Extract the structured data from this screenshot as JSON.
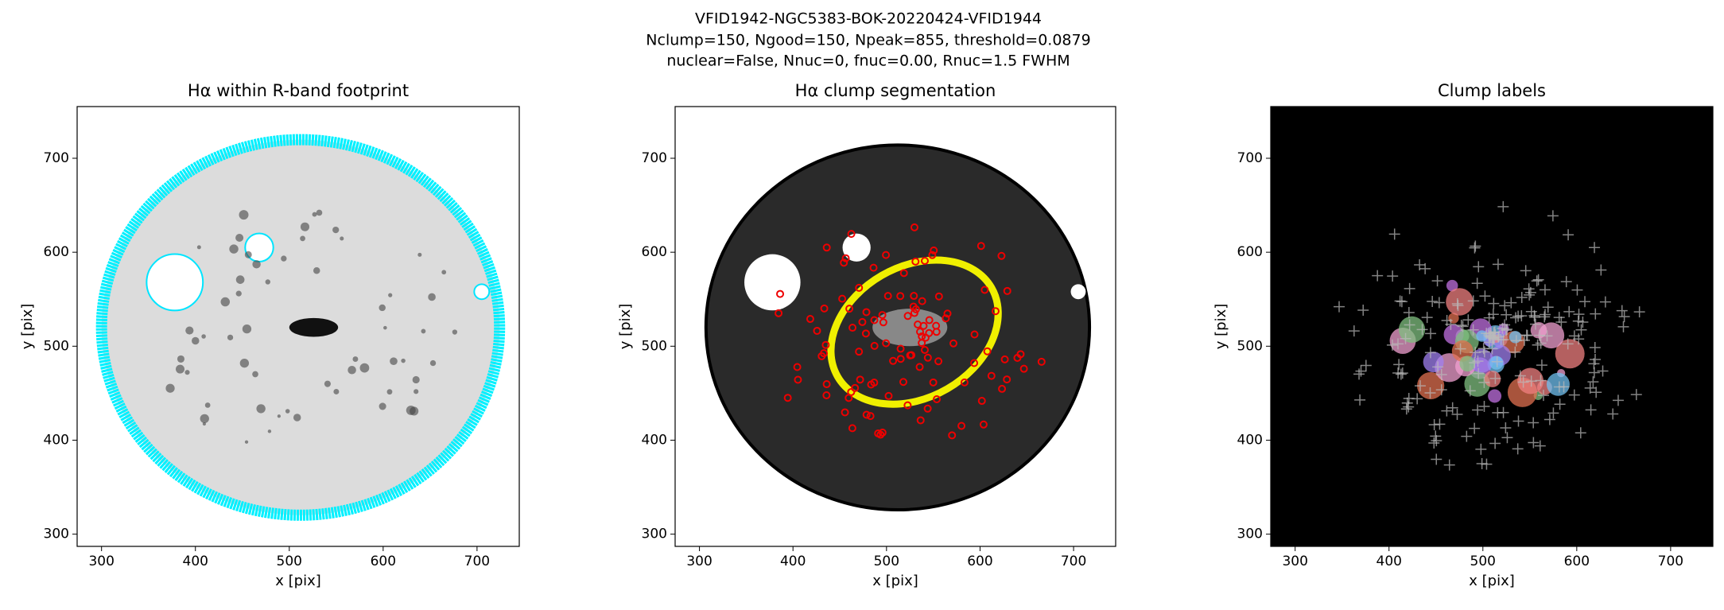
{
  "suptitle": [
    "VFID1942-NGC5383-BOK-20220424-VFID1944",
    "Nclump=150, Ngood=150, Npeak=855, threshold=0.0879",
    "nuclear=False, Nnuc=0, fnuc=0.00, Rnuc=1.5 FWHM"
  ],
  "chart_data": [
    {
      "type": "image",
      "title": "Hα within R-band footprint",
      "xlabel": "x [pix]",
      "ylabel": "y [pix]",
      "xlim": [
        274,
        745
      ],
      "ylim": [
        287,
        755
      ],
      "xticks": [
        300,
        400,
        500,
        600,
        700
      ],
      "yticks": [
        300,
        400,
        500,
        600,
        700
      ]
    },
    {
      "type": "image",
      "title": "Hα clump segmentation",
      "xlabel": "x [pix]",
      "ylabel": "y [pix]",
      "xlim": [
        274,
        745
      ],
      "ylim": [
        287,
        755
      ],
      "xticks": [
        300,
        400,
        500,
        600,
        700
      ],
      "yticks": [
        300,
        400,
        500,
        600,
        700
      ]
    },
    {
      "type": "image",
      "title": "Clump labels",
      "xlabel": "x [pix]",
      "ylabel": "y [pix]",
      "xlim": [
        274,
        745
      ],
      "ylim": [
        287,
        755
      ],
      "xticks": [
        300,
        400,
        500,
        600,
        700
      ],
      "yticks": [
        300,
        400,
        500,
        600,
        700
      ]
    }
  ]
}
